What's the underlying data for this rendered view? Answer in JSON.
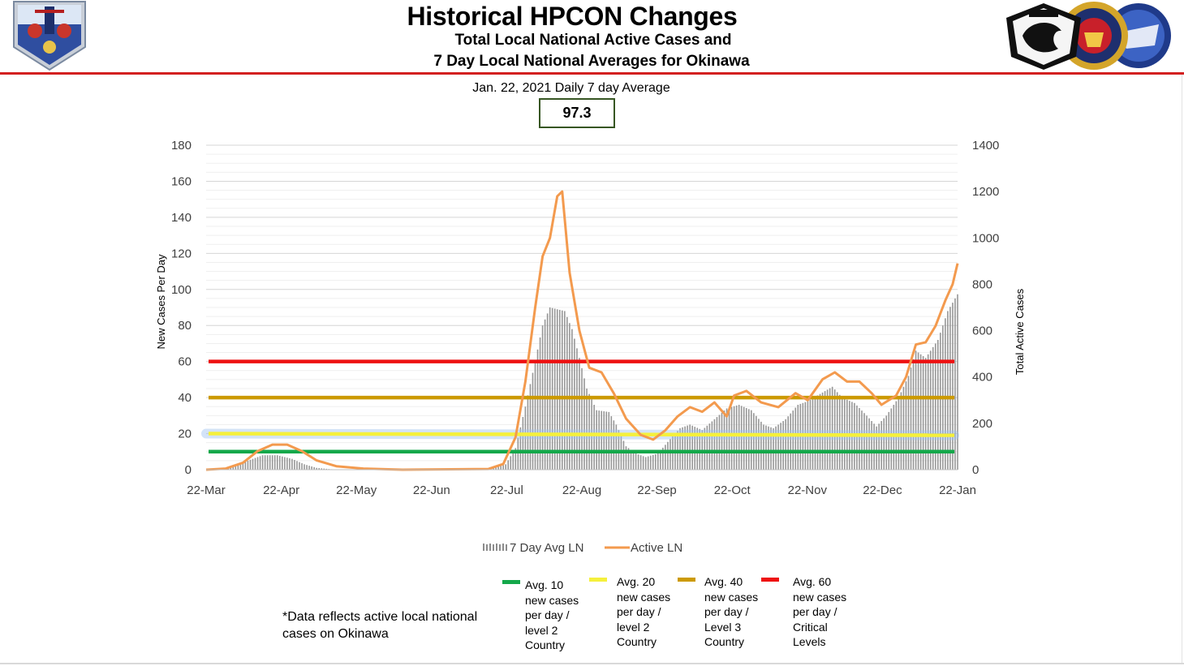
{
  "header": {
    "title": "Historical HPCON Changes",
    "subtitle_line1": "Total Local National Active Cases and",
    "subtitle_line2": "7 Day Local National Averages for Okinawa"
  },
  "summary": {
    "label": "Jan. 22, 2021 Daily 7 day Average",
    "value": "97.3"
  },
  "note": "*Data reflects active local national cases on Okinawa",
  "colors": {
    "level10": "#14a84a",
    "level20": "#f5f03c",
    "level40": "#cc9a00",
    "level60": "#ee1010",
    "active_line": "#f39a4e",
    "bars": "#8c8c8c"
  },
  "threshold_legend": [
    {
      "key": "level10",
      "text": "Avg. 10 new cases per day / level 2 Country"
    },
    {
      "key": "level20",
      "text": "Avg. 20 new cases per day / level 2 Country"
    },
    {
      "key": "level40",
      "text": "Avg. 40 new cases per day / Level 3 Country"
    },
    {
      "key": "level60",
      "text": "Avg. 60 new cases per day / Critical Levels"
    }
  ],
  "chart_data": {
    "type": "bar",
    "x_start": "2020-03-22",
    "x_end": "2021-01-22",
    "xticks": [
      "22-Mar",
      "22-Apr",
      "22-May",
      "22-Jun",
      "22-Jul",
      "22-Aug",
      "22-Sep",
      "22-Oct",
      "22-Nov",
      "22-Dec",
      "22-Jan"
    ],
    "ylabel_left": "New Cases Per Day",
    "ylabel_right": "Total Active Cases",
    "ylim_left": [
      0,
      180
    ],
    "ylim_right": [
      0,
      1400
    ],
    "yticks_left": [
      0,
      20,
      40,
      60,
      80,
      100,
      120,
      140,
      160,
      180
    ],
    "yticks_right": [
      0,
      200,
      400,
      600,
      800,
      1000,
      1200,
      1400
    ],
    "grid": true,
    "legend_position": "bottom",
    "thresholds": [
      {
        "key": "level10",
        "value": 10
      },
      {
        "key": "level20",
        "value": 20
      },
      {
        "key": "level40",
        "value": 40
      },
      {
        "key": "level60",
        "value": 60
      }
    ],
    "series": [
      {
        "name": "7 Day Avg LN",
        "axis": "left",
        "kind": "bar",
        "points": [
          [
            "2020-03-22",
            0
          ],
          [
            "2020-04-01",
            1
          ],
          [
            "2020-04-08",
            5
          ],
          [
            "2020-04-14",
            8
          ],
          [
            "2020-04-20",
            8
          ],
          [
            "2020-04-26",
            6
          ],
          [
            "2020-05-01",
            3
          ],
          [
            "2020-05-06",
            1
          ],
          [
            "2020-05-14",
            0
          ],
          [
            "2020-07-15",
            0
          ],
          [
            "2020-07-22",
            3
          ],
          [
            "2020-07-26",
            12
          ],
          [
            "2020-07-30",
            35
          ],
          [
            "2020-08-03",
            60
          ],
          [
            "2020-08-06",
            80
          ],
          [
            "2020-08-09",
            90
          ],
          [
            "2020-08-12",
            89
          ],
          [
            "2020-08-15",
            88
          ],
          [
            "2020-08-18",
            78
          ],
          [
            "2020-08-21",
            62
          ],
          [
            "2020-08-24",
            45
          ],
          [
            "2020-08-28",
            33
          ],
          [
            "2020-09-02",
            32
          ],
          [
            "2020-09-05",
            25
          ],
          [
            "2020-09-09",
            13
          ],
          [
            "2020-09-13",
            9
          ],
          [
            "2020-09-17",
            7
          ],
          [
            "2020-09-22",
            9
          ],
          [
            "2020-09-27",
            17
          ],
          [
            "2020-10-01",
            23
          ],
          [
            "2020-10-05",
            25
          ],
          [
            "2020-10-10",
            22
          ],
          [
            "2020-10-15",
            28
          ],
          [
            "2020-10-20",
            34
          ],
          [
            "2020-10-25",
            36
          ],
          [
            "2020-10-30",
            33
          ],
          [
            "2020-11-04",
            25
          ],
          [
            "2020-11-08",
            23
          ],
          [
            "2020-11-13",
            28
          ],
          [
            "2020-11-18",
            36
          ],
          [
            "2020-11-22",
            38
          ],
          [
            "2020-11-27",
            42
          ],
          [
            "2020-12-02",
            46
          ],
          [
            "2020-12-06",
            40
          ],
          [
            "2020-12-11",
            37
          ],
          [
            "2020-12-16",
            30
          ],
          [
            "2020-12-20",
            24
          ],
          [
            "2020-12-24",
            30
          ],
          [
            "2020-12-29",
            40
          ],
          [
            "2021-01-02",
            52
          ],
          [
            "2021-01-05",
            66
          ],
          [
            "2021-01-09",
            62
          ],
          [
            "2021-01-14",
            72
          ],
          [
            "2021-01-18",
            88
          ],
          [
            "2021-01-22",
            97.3
          ]
        ]
      },
      {
        "name": "Active LN",
        "axis": "right",
        "kind": "line",
        "points": [
          [
            "2020-03-22",
            0
          ],
          [
            "2020-03-30",
            5
          ],
          [
            "2020-04-06",
            30
          ],
          [
            "2020-04-12",
            80
          ],
          [
            "2020-04-18",
            108
          ],
          [
            "2020-04-24",
            108
          ],
          [
            "2020-04-30",
            80
          ],
          [
            "2020-05-06",
            40
          ],
          [
            "2020-05-14",
            15
          ],
          [
            "2020-05-25",
            5
          ],
          [
            "2020-06-10",
            0
          ],
          [
            "2020-07-15",
            3
          ],
          [
            "2020-07-21",
            25
          ],
          [
            "2020-07-26",
            140
          ],
          [
            "2020-07-30",
            380
          ],
          [
            "2020-08-03",
            700
          ],
          [
            "2020-08-06",
            920
          ],
          [
            "2020-08-09",
            1000
          ],
          [
            "2020-08-12",
            1180
          ],
          [
            "2020-08-14",
            1200
          ],
          [
            "2020-08-17",
            850
          ],
          [
            "2020-08-21",
            600
          ],
          [
            "2020-08-25",
            440
          ],
          [
            "2020-08-30",
            420
          ],
          [
            "2020-09-04",
            330
          ],
          [
            "2020-09-09",
            220
          ],
          [
            "2020-09-15",
            150
          ],
          [
            "2020-09-20",
            130
          ],
          [
            "2020-09-25",
            170
          ],
          [
            "2020-09-30",
            230
          ],
          [
            "2020-10-05",
            270
          ],
          [
            "2020-10-10",
            250
          ],
          [
            "2020-10-15",
            290
          ],
          [
            "2020-10-20",
            230
          ],
          [
            "2020-10-23",
            320
          ],
          [
            "2020-10-28",
            340
          ],
          [
            "2020-11-03",
            290
          ],
          [
            "2020-11-10",
            270
          ],
          [
            "2020-11-17",
            330
          ],
          [
            "2020-11-22",
            300
          ],
          [
            "2020-11-28",
            390
          ],
          [
            "2020-12-03",
            420
          ],
          [
            "2020-12-08",
            380
          ],
          [
            "2020-12-13",
            380
          ],
          [
            "2020-12-18",
            330
          ],
          [
            "2020-12-22",
            280
          ],
          [
            "2020-12-28",
            320
          ],
          [
            "2021-01-01",
            400
          ],
          [
            "2021-01-05",
            540
          ],
          [
            "2021-01-09",
            550
          ],
          [
            "2021-01-13",
            620
          ],
          [
            "2021-01-17",
            730
          ],
          [
            "2021-01-20",
            800
          ],
          [
            "2021-01-22",
            890
          ]
        ]
      }
    ]
  }
}
